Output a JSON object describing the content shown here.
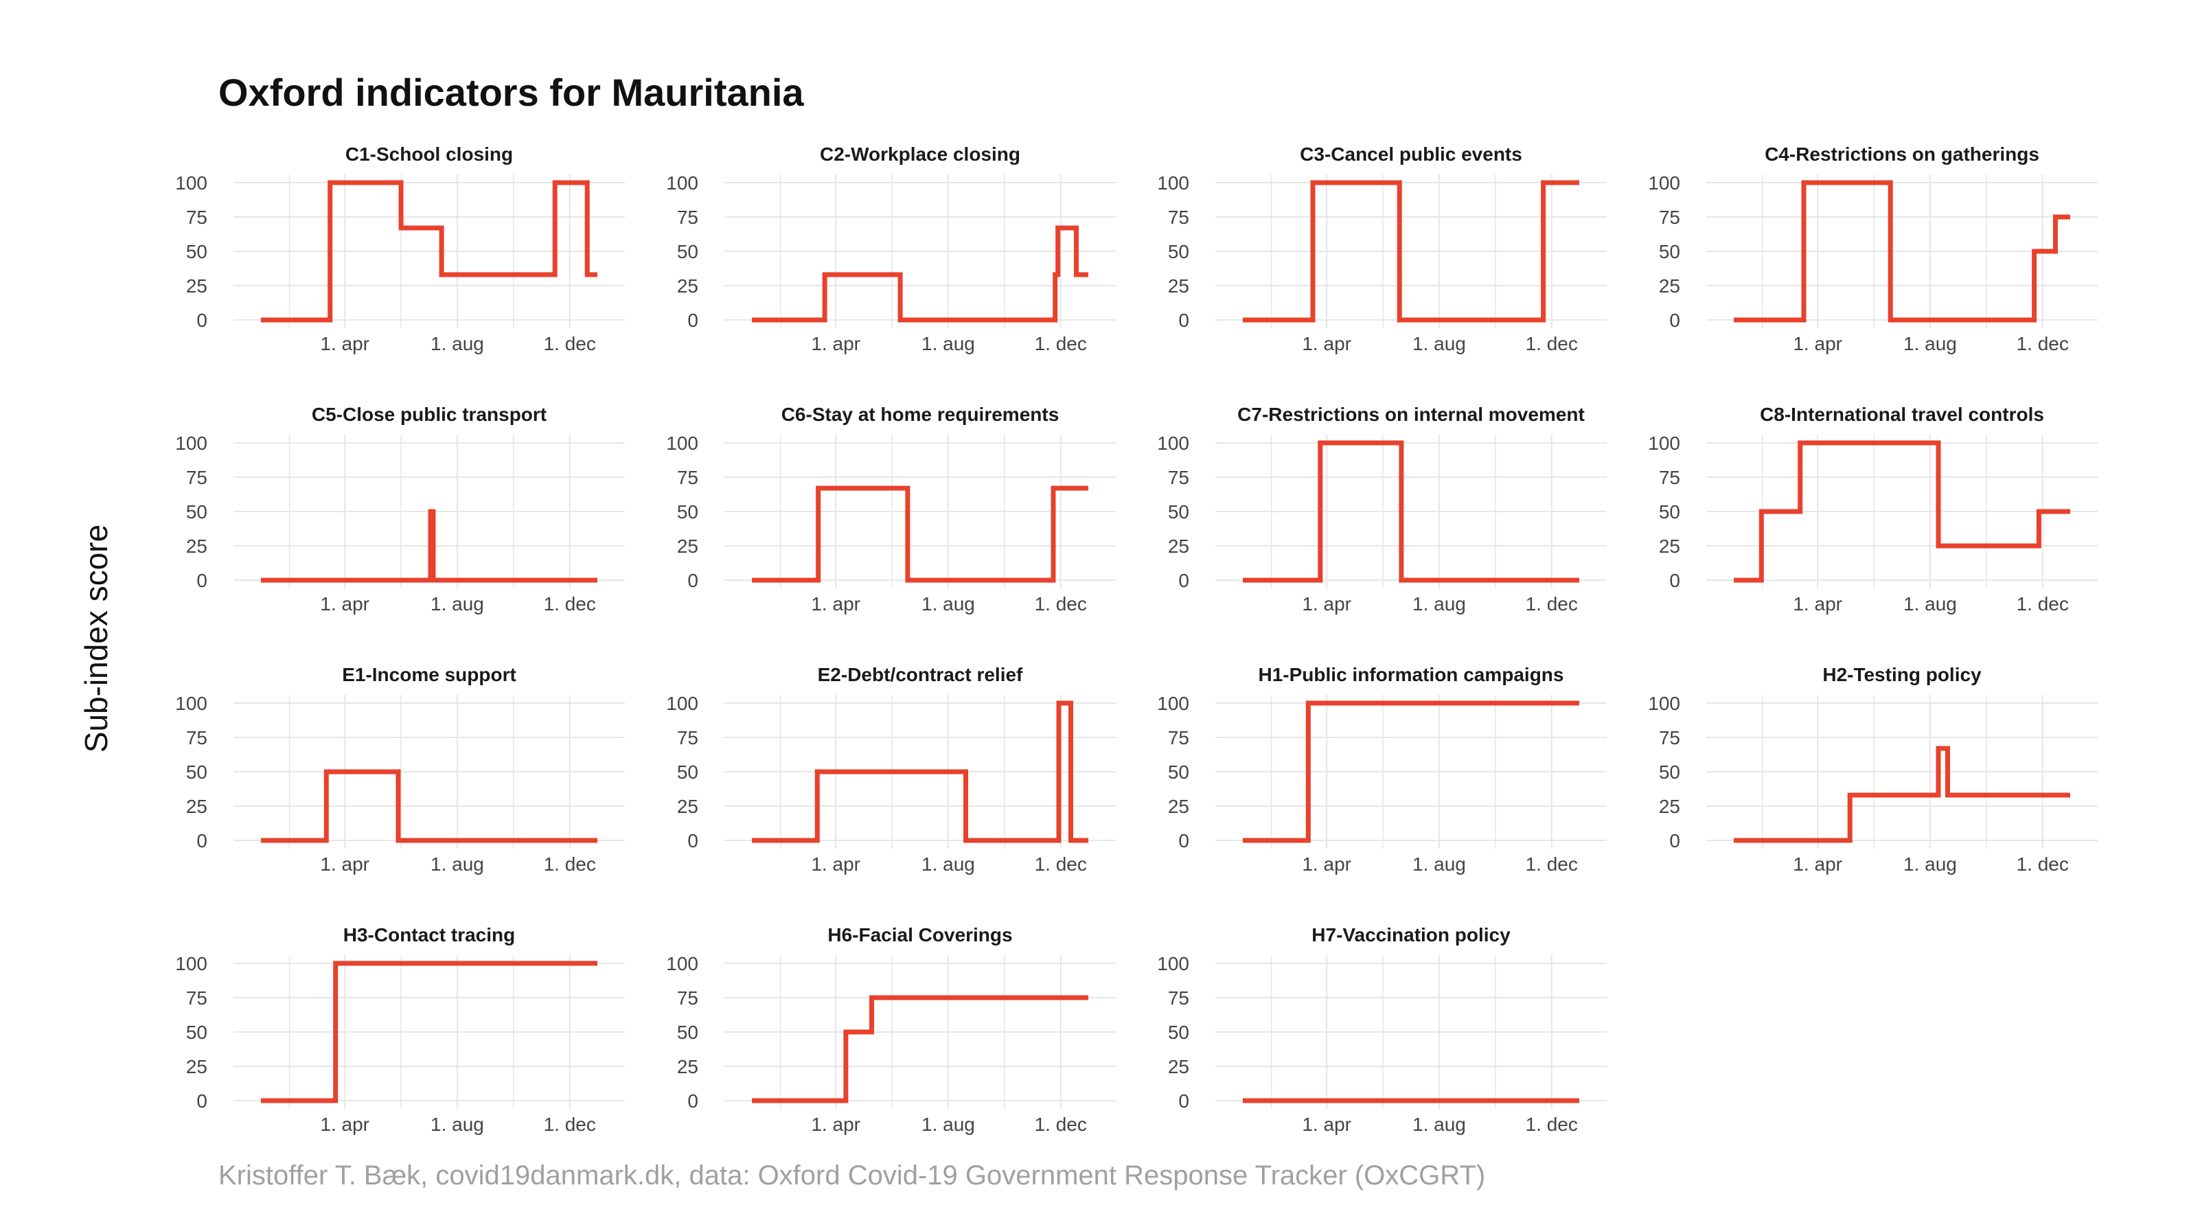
{
  "title": "Oxford indicators for Mauritania",
  "ylabel": "Sub-index score",
  "caption": "Kristoffer T. Bæk, covid19danmark.dk, data: Oxford Covid-19 Government Response Tracker (OxCGRT)",
  "colors": {
    "line": "#e8412c",
    "grid": "#e6e6e6",
    "text": "#1a1a1a"
  },
  "chart_data": [
    {
      "type": "line",
      "title": "C1-School closing",
      "x_ticks": [
        "1. apr",
        "1. aug",
        "1. dec"
      ],
      "y_ticks": [
        0,
        25,
        50,
        75,
        100
      ],
      "ylim": [
        0,
        100
      ],
      "points": [
        [
          "2020-01-01",
          0
        ],
        [
          "2020-03-16",
          0
        ],
        [
          "2020-03-16",
          100
        ],
        [
          "2020-06-01",
          100
        ],
        [
          "2020-06-01",
          67
        ],
        [
          "2020-07-15",
          67
        ],
        [
          "2020-07-15",
          33
        ],
        [
          "2020-11-15",
          33
        ],
        [
          "2020-11-15",
          100
        ],
        [
          "2020-12-20",
          100
        ],
        [
          "2020-12-20",
          33
        ],
        [
          "2020-12-31",
          33
        ]
      ]
    },
    {
      "type": "line",
      "title": "C2-Workplace closing",
      "x_ticks": [
        "1. apr",
        "1. aug",
        "1. dec"
      ],
      "y_ticks": [
        0,
        25,
        50,
        75,
        100
      ],
      "ylim": [
        0,
        100
      ],
      "points": [
        [
          "2020-01-01",
          0
        ],
        [
          "2020-03-20",
          0
        ],
        [
          "2020-03-20",
          33
        ],
        [
          "2020-06-10",
          33
        ],
        [
          "2020-06-10",
          0
        ],
        [
          "2020-11-25",
          0
        ],
        [
          "2020-11-25",
          33
        ],
        [
          "2020-11-28",
          33
        ],
        [
          "2020-11-28",
          67
        ],
        [
          "2020-12-18",
          67
        ],
        [
          "2020-12-18",
          33
        ],
        [
          "2020-12-31",
          33
        ]
      ]
    },
    {
      "type": "line",
      "title": "C3-Cancel public events",
      "x_ticks": [
        "1. apr",
        "1. aug",
        "1. dec"
      ],
      "y_ticks": [
        0,
        25,
        50,
        75,
        100
      ],
      "ylim": [
        0,
        100
      ],
      "points": [
        [
          "2020-01-01",
          0
        ],
        [
          "2020-03-17",
          0
        ],
        [
          "2020-03-17",
          100
        ],
        [
          "2020-06-19",
          100
        ],
        [
          "2020-06-19",
          0
        ],
        [
          "2020-11-22",
          0
        ],
        [
          "2020-11-22",
          100
        ],
        [
          "2020-12-31",
          100
        ]
      ]
    },
    {
      "type": "line",
      "title": "C4-Restrictions on gatherings",
      "x_ticks": [
        "1. apr",
        "1. aug",
        "1. dec"
      ],
      "y_ticks": [
        0,
        25,
        50,
        75,
        100
      ],
      "ylim": [
        0,
        100
      ],
      "points": [
        [
          "2020-01-01",
          0
        ],
        [
          "2020-03-17",
          0
        ],
        [
          "2020-03-17",
          100
        ],
        [
          "2020-06-19",
          100
        ],
        [
          "2020-06-19",
          0
        ],
        [
          "2020-11-22",
          0
        ],
        [
          "2020-11-22",
          50
        ],
        [
          "2020-12-15",
          50
        ],
        [
          "2020-12-15",
          75
        ],
        [
          "2020-12-31",
          75
        ]
      ]
    },
    {
      "type": "line",
      "title": "C5-Close public transport",
      "x_ticks": [
        "1. apr",
        "1. aug",
        "1. dec"
      ],
      "y_ticks": [
        0,
        25,
        50,
        75,
        100
      ],
      "ylim": [
        0,
        100
      ],
      "points": [
        [
          "2020-01-01",
          0
        ],
        [
          "2020-07-03",
          0
        ],
        [
          "2020-07-03",
          50
        ],
        [
          "2020-07-06",
          50
        ],
        [
          "2020-07-06",
          0
        ],
        [
          "2020-12-31",
          0
        ]
      ]
    },
    {
      "type": "line",
      "title": "C6-Stay at home requirements",
      "x_ticks": [
        "1. apr",
        "1. aug",
        "1. dec"
      ],
      "y_ticks": [
        0,
        25,
        50,
        75,
        100
      ],
      "ylim": [
        0,
        100
      ],
      "points": [
        [
          "2020-01-01",
          0
        ],
        [
          "2020-03-13",
          0
        ],
        [
          "2020-03-13",
          67
        ],
        [
          "2020-06-18",
          67
        ],
        [
          "2020-06-18",
          0
        ],
        [
          "2020-11-23",
          0
        ],
        [
          "2020-11-23",
          67
        ],
        [
          "2020-12-31",
          67
        ]
      ]
    },
    {
      "type": "line",
      "title": "C7-Restrictions on internal movement",
      "x_ticks": [
        "1. apr",
        "1. aug",
        "1. dec"
      ],
      "y_ticks": [
        0,
        25,
        50,
        75,
        100
      ],
      "ylim": [
        0,
        100
      ],
      "points": [
        [
          "2020-01-01",
          0
        ],
        [
          "2020-03-25",
          0
        ],
        [
          "2020-03-25",
          100
        ],
        [
          "2020-06-21",
          100
        ],
        [
          "2020-06-21",
          0
        ],
        [
          "2020-12-31",
          0
        ]
      ]
    },
    {
      "type": "line",
      "title": "C8-International travel controls",
      "x_ticks": [
        "1. apr",
        "1. aug",
        "1. dec"
      ],
      "y_ticks": [
        0,
        25,
        50,
        75,
        100
      ],
      "ylim": [
        0,
        100
      ],
      "points": [
        [
          "2020-01-01",
          0
        ],
        [
          "2020-01-31",
          0
        ],
        [
          "2020-01-31",
          50
        ],
        [
          "2020-03-13",
          50
        ],
        [
          "2020-03-13",
          100
        ],
        [
          "2020-08-10",
          100
        ],
        [
          "2020-08-10",
          25
        ],
        [
          "2020-11-27",
          25
        ],
        [
          "2020-11-27",
          50
        ],
        [
          "2020-12-31",
          50
        ]
      ]
    },
    {
      "type": "line",
      "title": "E1-Income support",
      "x_ticks": [
        "1. apr",
        "1. aug",
        "1. dec"
      ],
      "y_ticks": [
        0,
        25,
        50,
        75,
        100
      ],
      "ylim": [
        0,
        100
      ],
      "points": [
        [
          "2020-01-01",
          0
        ],
        [
          "2020-03-12",
          0
        ],
        [
          "2020-03-12",
          50
        ],
        [
          "2020-05-29",
          50
        ],
        [
          "2020-05-29",
          0
        ],
        [
          "2020-12-31",
          0
        ]
      ]
    },
    {
      "type": "line",
      "title": "E2-Debt/contract relief",
      "x_ticks": [
        "1. apr",
        "1. aug",
        "1. dec"
      ],
      "y_ticks": [
        0,
        25,
        50,
        75,
        100
      ],
      "ylim": [
        0,
        100
      ],
      "points": [
        [
          "2020-01-01",
          0
        ],
        [
          "2020-03-12",
          0
        ],
        [
          "2020-03-12",
          50
        ],
        [
          "2020-08-20",
          50
        ],
        [
          "2020-08-20",
          0
        ],
        [
          "2020-11-29",
          0
        ],
        [
          "2020-11-29",
          100
        ],
        [
          "2020-12-12",
          100
        ],
        [
          "2020-12-12",
          0
        ],
        [
          "2020-12-31",
          0
        ]
      ]
    },
    {
      "type": "line",
      "title": "H1-Public information campaigns",
      "x_ticks": [
        "1. apr",
        "1. aug",
        "1. dec"
      ],
      "y_ticks": [
        0,
        25,
        50,
        75,
        100
      ],
      "ylim": [
        0,
        100
      ],
      "points": [
        [
          "2020-01-01",
          0
        ],
        [
          "2020-03-12",
          0
        ],
        [
          "2020-03-12",
          100
        ],
        [
          "2020-12-31",
          100
        ]
      ]
    },
    {
      "type": "line",
      "title": "H2-Testing policy",
      "x_ticks": [
        "1. apr",
        "1. aug",
        "1. dec"
      ],
      "y_ticks": [
        0,
        25,
        50,
        75,
        100
      ],
      "ylim": [
        0,
        100
      ],
      "points": [
        [
          "2020-01-01",
          0
        ],
        [
          "2020-05-06",
          0
        ],
        [
          "2020-05-06",
          33
        ],
        [
          "2020-08-10",
          33
        ],
        [
          "2020-08-10",
          67
        ],
        [
          "2020-08-20",
          67
        ],
        [
          "2020-08-20",
          33
        ],
        [
          "2020-12-31",
          33
        ]
      ]
    },
    {
      "type": "line",
      "title": "H3-Contact tracing",
      "x_ticks": [
        "1. apr",
        "1. aug",
        "1. dec"
      ],
      "y_ticks": [
        0,
        25,
        50,
        75,
        100
      ],
      "ylim": [
        0,
        100
      ],
      "points": [
        [
          "2020-01-01",
          0
        ],
        [
          "2020-03-22",
          0
        ],
        [
          "2020-03-22",
          100
        ],
        [
          "2020-12-31",
          100
        ]
      ]
    },
    {
      "type": "line",
      "title": "H6-Facial Coverings",
      "x_ticks": [
        "1. apr",
        "1. aug",
        "1. dec"
      ],
      "y_ticks": [
        0,
        25,
        50,
        75,
        100
      ],
      "ylim": [
        0,
        100
      ],
      "points": [
        [
          "2020-01-01",
          0
        ],
        [
          "2020-04-12",
          0
        ],
        [
          "2020-04-12",
          50
        ],
        [
          "2020-05-10",
          50
        ],
        [
          "2020-05-10",
          75
        ],
        [
          "2020-12-31",
          75
        ]
      ]
    },
    {
      "type": "line",
      "title": "H7-Vaccination policy",
      "x_ticks": [
        "1. apr",
        "1. aug",
        "1. dec"
      ],
      "y_ticks": [
        0,
        25,
        50,
        75,
        100
      ],
      "ylim": [
        0,
        100
      ],
      "points": [
        [
          "2020-01-01",
          0
        ],
        [
          "2020-12-31",
          0
        ]
      ]
    }
  ]
}
